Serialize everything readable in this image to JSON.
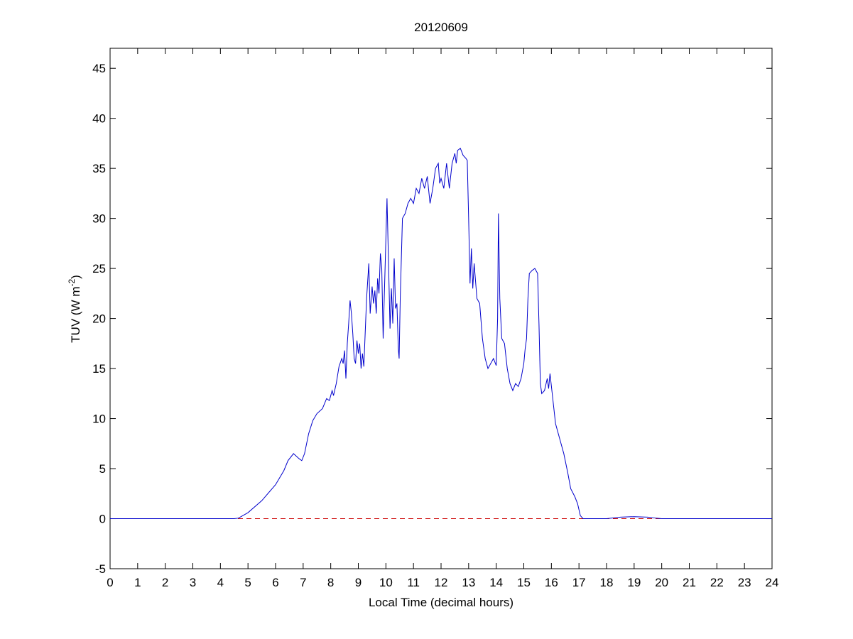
{
  "chart_data": {
    "type": "line",
    "title": "20120609",
    "xlabel": "Local Time (decimal hours)",
    "ylabel": [
      "TUV (W m",
      "-2",
      ")"
    ],
    "xlim": [
      0,
      24
    ],
    "ylim": [
      -5,
      47
    ],
    "xticks": [
      0,
      1,
      2,
      3,
      4,
      5,
      6,
      7,
      8,
      9,
      10,
      11,
      12,
      13,
      14,
      15,
      16,
      17,
      18,
      19,
      20,
      21,
      22,
      23,
      24
    ],
    "yticks": [
      -5,
      0,
      5,
      10,
      15,
      20,
      25,
      30,
      35,
      40,
      45
    ],
    "hlines": [
      {
        "y": 0,
        "color": "#cc0000",
        "dash": true
      }
    ],
    "x": [
      0,
      4.5,
      4.65,
      5.0,
      5.5,
      6.0,
      6.3,
      6.45,
      6.65,
      6.85,
      6.95,
      7.05,
      7.2,
      7.35,
      7.5,
      7.7,
      7.85,
      7.95,
      8.05,
      8.1,
      8.2,
      8.3,
      8.4,
      8.45,
      8.5,
      8.55,
      8.6,
      8.65,
      8.7,
      8.75,
      8.8,
      8.85,
      8.9,
      8.95,
      9.0,
      9.05,
      9.1,
      9.15,
      9.2,
      9.3,
      9.38,
      9.43,
      9.5,
      9.55,
      9.6,
      9.65,
      9.7,
      9.75,
      9.8,
      9.85,
      9.9,
      9.95,
      10.0,
      10.04,
      10.1,
      10.15,
      10.2,
      10.25,
      10.3,
      10.35,
      10.4,
      10.45,
      10.48,
      10.52,
      10.6,
      10.7,
      10.8,
      10.9,
      11.0,
      11.1,
      11.2,
      11.3,
      11.4,
      11.5,
      11.6,
      11.7,
      11.8,
      11.9,
      11.95,
      12.0,
      12.1,
      12.2,
      12.3,
      12.4,
      12.5,
      12.55,
      12.6,
      12.7,
      12.8,
      12.9,
      12.95,
      13.0,
      13.05,
      13.1,
      13.15,
      13.2,
      13.3,
      13.4,
      13.5,
      13.6,
      13.7,
      13.8,
      13.9,
      14.0,
      14.05,
      14.08,
      14.13,
      14.2,
      14.3,
      14.4,
      14.5,
      14.6,
      14.7,
      14.8,
      14.9,
      15.0,
      15.05,
      15.1,
      15.15,
      15.2,
      15.3,
      15.4,
      15.5,
      15.55,
      15.6,
      15.65,
      15.75,
      15.85,
      15.9,
      15.95,
      16.05,
      16.15,
      16.3,
      16.45,
      16.6,
      16.7,
      16.85,
      16.95,
      17.05,
      17.15,
      18.0,
      18.5,
      19.0,
      19.5,
      19.8,
      20.0,
      24
    ],
    "series": [
      {
        "color": "#0000cc",
        "values": [
          0,
          0,
          0.05,
          0.6,
          1.8,
          3.4,
          4.8,
          5.8,
          6.5,
          6.0,
          5.8,
          6.5,
          8.5,
          9.8,
          10.5,
          11.0,
          12.0,
          11.8,
          12.8,
          12.3,
          13.5,
          15.2,
          16.0,
          15.5,
          16.8,
          14.0,
          17.5,
          19.5,
          21.8,
          20.5,
          18.5,
          16.0,
          15.5,
          17.8,
          16.5,
          17.5,
          15.0,
          16.5,
          15.2,
          22.0,
          25.5,
          20.5,
          23.2,
          21.5,
          22.8,
          20.5,
          24.0,
          22.5,
          26.5,
          25.0,
          18.0,
          23.0,
          28.0,
          32.0,
          25.0,
          19.0,
          23.0,
          19.5,
          26.0,
          21.0,
          21.5,
          17.0,
          16.0,
          22.0,
          30.0,
          30.5,
          31.5,
          32.0,
          31.5,
          33.0,
          32.5,
          34.0,
          33.0,
          34.2,
          31.5,
          33.0,
          35.0,
          35.5,
          33.5,
          34.0,
          33.0,
          35.5,
          33.0,
          35.5,
          36.5,
          35.5,
          36.8,
          37.0,
          36.3,
          36.0,
          35.8,
          30.0,
          23.5,
          27.0,
          23.0,
          25.5,
          22.0,
          21.5,
          18.0,
          16.0,
          15.0,
          15.5,
          16.0,
          15.3,
          20.0,
          30.5,
          22.0,
          18.0,
          17.5,
          15.0,
          13.5,
          12.8,
          13.5,
          13.2,
          14.0,
          15.5,
          17.0,
          18.0,
          22.0,
          24.5,
          24.8,
          25.0,
          24.5,
          19.5,
          13.5,
          12.5,
          12.8,
          14.0,
          13.0,
          14.5,
          12.0,
          9.5,
          8.0,
          6.5,
          4.5,
          3.0,
          2.2,
          1.5,
          0.3,
          0,
          0,
          0.15,
          0.2,
          0.15,
          0.05,
          0,
          0
        ]
      }
    ]
  }
}
